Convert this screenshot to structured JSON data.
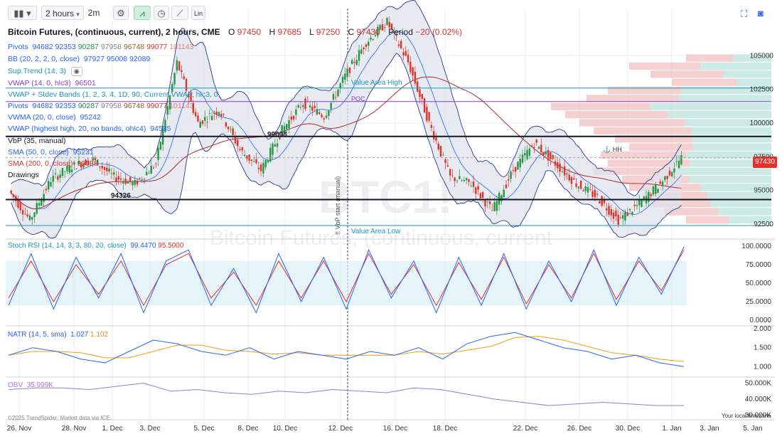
{
  "toolbar": {
    "chart_type_icon": "candles-icon",
    "interval": "2 hours",
    "resolution": "2m",
    "settings_icon": "gear-icon",
    "indicator_icon": "indicator-icon",
    "replay_icon": "clock-icon",
    "draw_icon": "draw-icon",
    "scale_label": "Lin",
    "fullscreen_icon": "fullscreen-icon",
    "camera_icon": "camera-icon"
  },
  "header": {
    "title": "Bitcoin Futures, (continuous, current), 2 hours, CME",
    "o_label": "O",
    "o_value": "97450",
    "h_label": "H",
    "h_value": "97685",
    "l_label": "L",
    "l_value": "97250",
    "c_label": "C",
    "c_value": "97430",
    "period_label": "Period",
    "period_change": "−20",
    "period_pct": "(0.02%)"
  },
  "legend": {
    "pivots_1": {
      "name": "Pivots",
      "v1": "94682",
      "v2": "92353",
      "v3": "90287",
      "v4": "97958",
      "v5": "96748",
      "v6": "99077",
      "v7": "101143"
    },
    "bb": {
      "name": "BB (20, 2, 2, 0, close)",
      "v1": "97927",
      "v2": "95008",
      "v3": "92089"
    },
    "suptrend": {
      "name": "Sup.Trend (14, 3)",
      "icon": "eye-icon"
    },
    "vwap": {
      "name": "VWAP (14, 0, hlc3)",
      "v1": "96501"
    },
    "vwap_bands": {
      "name": "VWAP + Stdev Bands (1, 2, 3, 4, 1D, 90, Current VWAP, hlc3, 0,"
    },
    "pivots_2": {
      "name": "Pivots",
      "v1": "94682",
      "v2": "92353",
      "v3": "90287",
      "v4": "97958",
      "v5": "96748",
      "v6": "99077",
      "v7": "101143"
    },
    "vwma": {
      "name": "VWMA (20, 0, close)",
      "v1": "95242"
    },
    "vwap_hh": {
      "name": "VWAP (highest high, 20, no bands, ohlc4)",
      "v1": "94535"
    },
    "vbp": {
      "name": "VbP (35, manual)"
    },
    "sma50": {
      "name": "SMA (50, 0, close)",
      "v1": "95231"
    },
    "sma200": {
      "name": "SMA (200, 0, close)",
      "v1": "99088"
    },
    "drawings": {
      "name": "Drawings"
    }
  },
  "annotations": {
    "value_area_high": "Value Area High",
    "value_area_low": "Value Area Low",
    "poc": "POC",
    "level_99008": "99008",
    "level_94326": "94326",
    "hh": "HH",
    "vbp_start": "!! VbP start (manual)"
  },
  "watermark": {
    "symbol": "BTC1!",
    "name": "Bitcoin Futures, (continuous, current"
  },
  "price_axis": {
    "ticks": [
      "105000",
      "102500",
      "100000",
      "97500",
      "95000",
      "92500"
    ],
    "current_price": "97430"
  },
  "stoch": {
    "name": "Stoch RSI (14, 14, 3, 3, 80, 20, close)",
    "v1": "99.4470",
    "v2": "95.5000",
    "ticks": [
      "100.0000",
      "75.0000",
      "50.0000",
      "25.0000",
      "0.0000"
    ]
  },
  "natr": {
    "name": "NATR (14, 5, sma)",
    "v1": "1.027",
    "v2": "1.102",
    "ticks": [
      "2.000",
      "1.500",
      "1.000"
    ]
  },
  "obv": {
    "name": "OBV",
    "v1": "35.999K",
    "ticks": [
      "50.000K",
      "40.000K",
      "30.000K"
    ]
  },
  "dates": [
    "26. Nov",
    "28. Nov",
    "1. Dec",
    "3. Dec",
    "5. Dec",
    "8. Dec",
    "10. Dec",
    "12. Dec",
    "16. Dec",
    "18. Dec",
    "22. Dec",
    "26. Dec",
    "30. Dec",
    "1. Jan",
    "3. Jan",
    "5. Jan"
  ],
  "footer": {
    "credit": "©2025 TrendSpider. Market data via ICE.",
    "timezone": "Your local timezone"
  },
  "colors": {
    "up": "#239640",
    "down": "#e0312b",
    "bb": "#2b3a8c",
    "bbfill": "#dfe3ec",
    "sma200": "#b22b2b",
    "vwap": "#8c3cd6",
    "stoch_k": "#2962ff",
    "stoch_d": "#e0312b",
    "natr_1": "#2962ff",
    "natr_2": "#f39c12",
    "obv": "#8f7cd8",
    "vbp_up": "#bfe5dd",
    "vbp_down": "#f2c4c4"
  },
  "chart_data": {
    "type": "candlestick",
    "symbol": "BTC1!",
    "interval": "2 hours",
    "x_range": [
      "26. Nov",
      "5. Jan"
    ],
    "ylim": [
      91500,
      108500
    ],
    "key_levels": {
      "resistance": 99008,
      "support": 94326,
      "value_area_high": 102600,
      "value_area_low": 92400,
      "poc": 101600
    },
    "close_path": [
      {
        "date": "26. Nov",
        "close": 95000
      },
      {
        "date": "27. Nov",
        "close": 92800
      },
      {
        "date": "28. Nov",
        "close": 95800
      },
      {
        "date": "29. Nov",
        "close": 96800
      },
      {
        "date": "1. Dec",
        "close": 97300
      },
      {
        "date": "2. Dec",
        "close": 96000
      },
      {
        "date": "3. Dec",
        "close": 95500
      },
      {
        "date": "4. Dec",
        "close": 97000
      },
      {
        "date": "5. Dec",
        "close": 104500
      },
      {
        "date": "6. Dec",
        "close": 100000
      },
      {
        "date": "8. Dec",
        "close": 101000
      },
      {
        "date": "9. Dec",
        "close": 98000
      },
      {
        "date": "10. Dec",
        "close": 96500
      },
      {
        "date": "11. Dec",
        "close": 99500
      },
      {
        "date": "12. Dec",
        "close": 101500
      },
      {
        "date": "13. Dec",
        "close": 100500
      },
      {
        "date": "15. Dec",
        "close": 103500
      },
      {
        "date": "16. Dec",
        "close": 106000
      },
      {
        "date": "17. Dec",
        "close": 107500
      },
      {
        "date": "18. Dec",
        "close": 104500
      },
      {
        "date": "19. Dec",
        "close": 100000
      },
      {
        "date": "20. Dec",
        "close": 96000
      },
      {
        "date": "22. Dec",
        "close": 95500
      },
      {
        "date": "23. Dec",
        "close": 93500
      },
      {
        "date": "24. Dec",
        "close": 96500
      },
      {
        "date": "25. Dec",
        "close": 98500
      },
      {
        "date": "26. Dec",
        "close": 97000
      },
      {
        "date": "27. Dec",
        "close": 95500
      },
      {
        "date": "29. Dec",
        "close": 94500
      },
      {
        "date": "30. Dec",
        "close": 92800
      },
      {
        "date": "31. Dec",
        "close": 94000
      },
      {
        "date": "1. Jan",
        "close": 95500
      },
      {
        "date": "2. Jan",
        "close": 97430
      }
    ],
    "stoch_rsi_k": [
      20,
      90,
      15,
      85,
      30,
      90,
      10,
      80,
      95,
      20,
      70,
      10,
      90,
      25,
      85,
      15,
      95,
      30,
      80,
      10,
      85,
      20,
      90,
      15,
      80,
      25,
      95,
      20,
      85,
      35,
      99
    ],
    "stoch_rsi_d": [
      30,
      80,
      25,
      75,
      35,
      80,
      20,
      75,
      90,
      30,
      65,
      20,
      80,
      30,
      80,
      25,
      90,
      35,
      75,
      20,
      78,
      28,
      85,
      22,
      75,
      30,
      90,
      28,
      80,
      40,
      95
    ],
    "natr": [
      1.3,
      1.5,
      1.4,
      1.2,
      1.1,
      1.4,
      1.7,
      1.6,
      1.4,
      1.3,
      1.5,
      1.2,
      1.4,
      1.3,
      1.2,
      1.4,
      1.3,
      1.5,
      1.2,
      1.6,
      1.8,
      1.9,
      1.7,
      1.5,
      1.4,
      1.2,
      1.3,
      1.1,
      1.0
    ],
    "obv_k": [
      46,
      47,
      47,
      46,
      48,
      50,
      45,
      46,
      44,
      43,
      45,
      44,
      46,
      45,
      44,
      47,
      46,
      43,
      40,
      38,
      36,
      37,
      38,
      37,
      36,
      36
    ]
  }
}
